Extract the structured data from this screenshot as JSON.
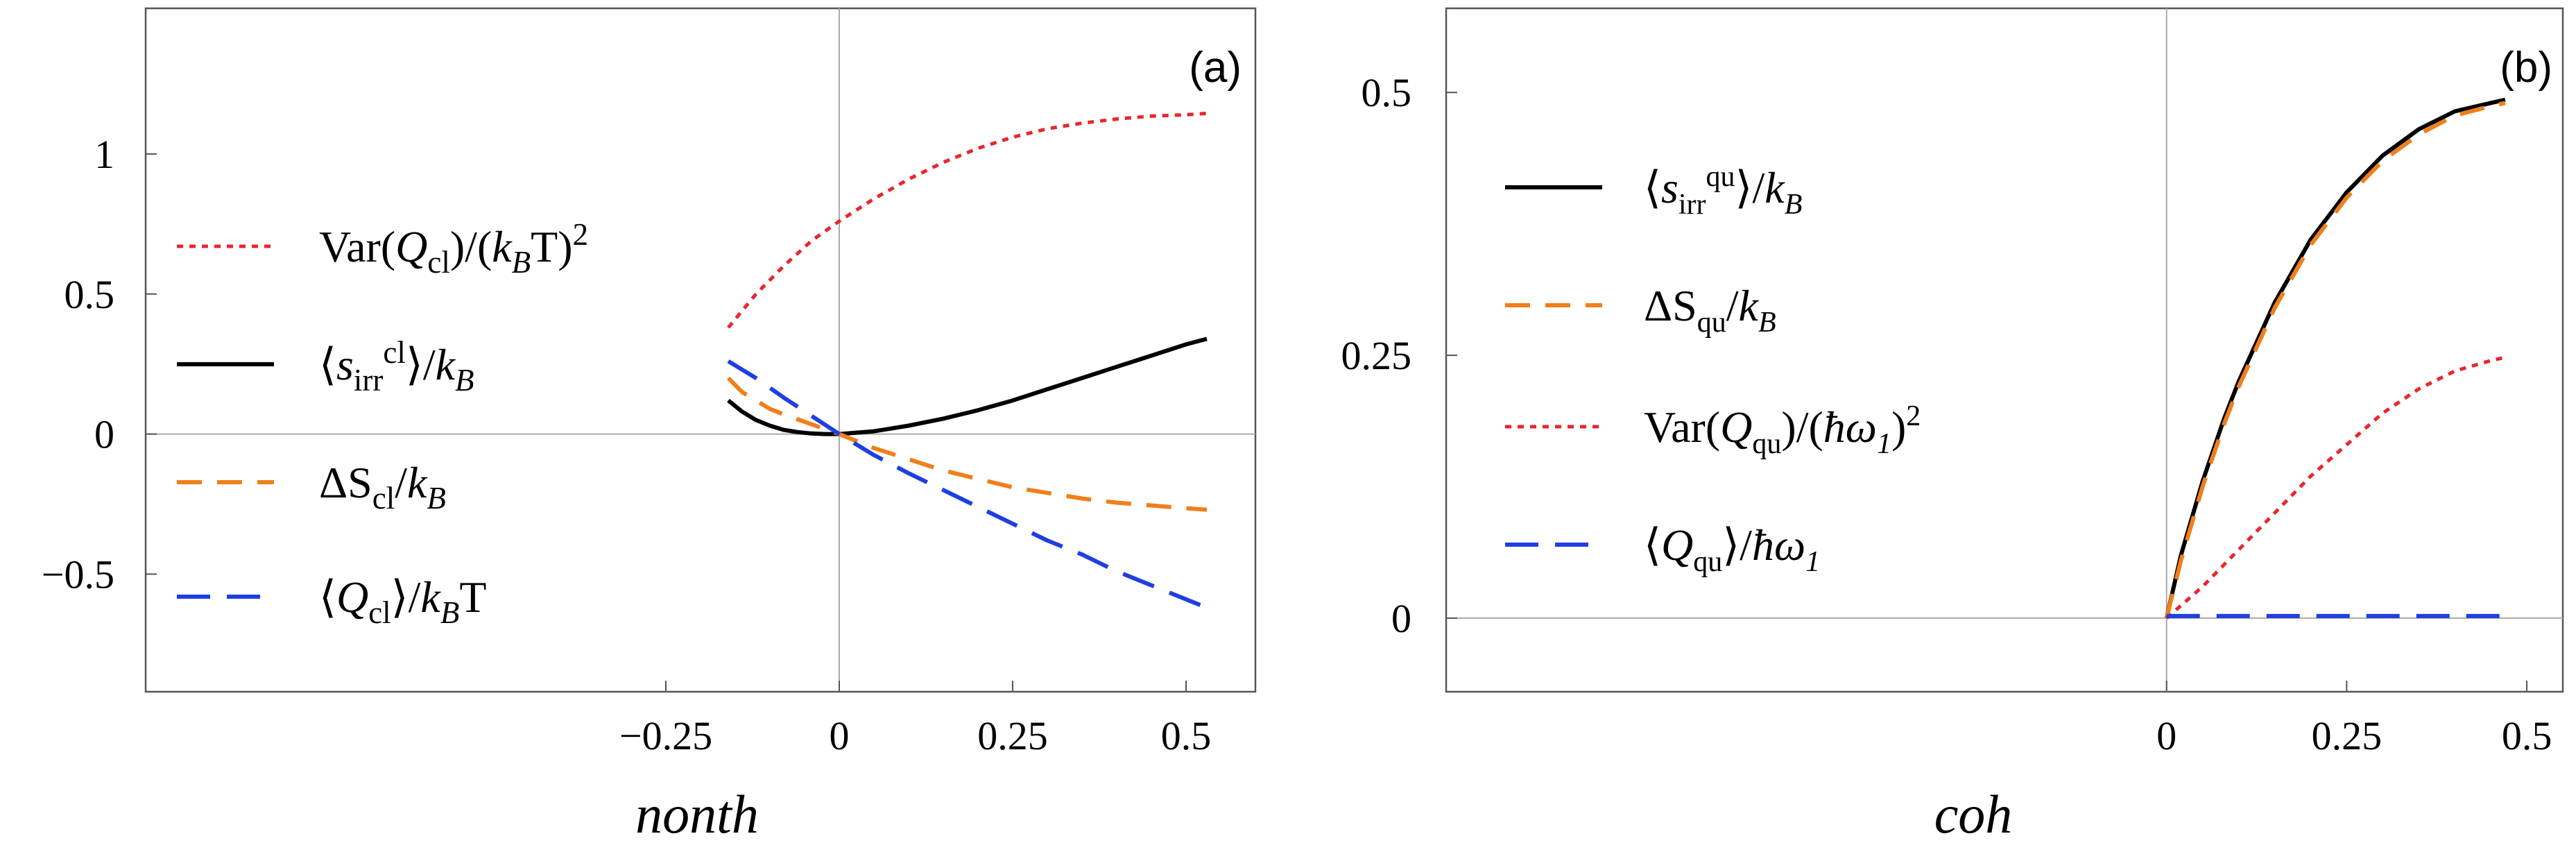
{
  "chart_data": [
    {
      "type": "line",
      "panel_label": "(a)",
      "xlabel": "nonth",
      "ylabel": "",
      "xlim": [
        -1.0,
        0.6
      ],
      "ylim": [
        -0.92,
        1.52
      ],
      "grid": false,
      "legend_position": "left",
      "x_ticks": [
        {
          "value": -0.25,
          "label": "−0.25"
        },
        {
          "value": 0,
          "label": "0"
        },
        {
          "value": 0.25,
          "label": "0.25"
        },
        {
          "value": 0.5,
          "label": "0.5"
        }
      ],
      "y_ticks": [
        {
          "value": -0.5,
          "label": "−0.5"
        },
        {
          "value": 0,
          "label": "0"
        },
        {
          "value": 0.5,
          "label": "0.5"
        },
        {
          "value": 1,
          "label": "1"
        }
      ],
      "series": [
        {
          "name": "Var(Q_cl)/(k_B T)^2",
          "color": "#e8262d",
          "dash": "dotted",
          "legend": {
            "pre": "Var(",
            "sym": "Q",
            "sub": "cl",
            "mid": ")/(",
            "sym2": "k",
            "sub2": "B",
            "post": "T)",
            "sup": "2"
          },
          "x": [
            -0.16,
            -0.12,
            -0.08,
            -0.04,
            0.0,
            0.05,
            0.1,
            0.15,
            0.2,
            0.25,
            0.3,
            0.35,
            0.4,
            0.45,
            0.5,
            0.53
          ],
          "y": [
            0.38,
            0.5,
            0.6,
            0.69,
            0.76,
            0.84,
            0.91,
            0.97,
            1.02,
            1.06,
            1.09,
            1.11,
            1.125,
            1.135,
            1.14,
            1.145
          ]
        },
        {
          "name": "<s_irr^cl>/k_B",
          "color": "#000000",
          "dash": "solid",
          "legend": {
            "pre": "⟨",
            "sym": "s",
            "sub": "irr",
            "sup": "cl",
            "mid": "⟩/",
            "sym2": "k",
            "sub2": "B",
            "post": ""
          },
          "x": [
            -0.16,
            -0.14,
            -0.12,
            -0.1,
            -0.08,
            -0.06,
            -0.04,
            -0.02,
            0.0,
            0.05,
            0.1,
            0.15,
            0.2,
            0.25,
            0.3,
            0.35,
            0.4,
            0.45,
            0.5,
            0.53
          ],
          "y": [
            0.12,
            0.08,
            0.05,
            0.03,
            0.015,
            0.007,
            0.002,
            0.0,
            0.0,
            0.01,
            0.03,
            0.055,
            0.085,
            0.12,
            0.16,
            0.2,
            0.24,
            0.28,
            0.32,
            0.34
          ]
        },
        {
          "name": "ΔS_cl/k_B",
          "color": "#f07f1a",
          "dash": "dashed",
          "legend": {
            "pre": "ΔS",
            "sym": "",
            "sub": "cl",
            "mid": "/",
            "sym2": "k",
            "sub2": "B",
            "post": ""
          },
          "x": [
            -0.16,
            -0.14,
            -0.12,
            -0.1,
            -0.08,
            -0.04,
            0.0,
            0.05,
            0.1,
            0.15,
            0.2,
            0.25,
            0.3,
            0.35,
            0.4,
            0.45,
            0.5,
            0.53
          ],
          "y": [
            0.2,
            0.15,
            0.12,
            0.09,
            0.07,
            0.035,
            0.0,
            -0.05,
            -0.09,
            -0.13,
            -0.16,
            -0.19,
            -0.21,
            -0.23,
            -0.245,
            -0.255,
            -0.265,
            -0.27
          ]
        },
        {
          "name": "<Q_cl>/k_B T",
          "color": "#1f3fe0",
          "dash": "longdash",
          "legend": {
            "pre": "⟨",
            "sym": "Q",
            "sub": "cl",
            "mid": "⟩/",
            "sym2": "k",
            "sub2": "B",
            "post": "T"
          },
          "x": [
            -0.16,
            -0.12,
            -0.08,
            -0.04,
            0.0,
            0.05,
            0.1,
            0.15,
            0.2,
            0.25,
            0.3,
            0.35,
            0.4,
            0.45,
            0.5,
            0.53
          ],
          "y": [
            0.26,
            0.2,
            0.13,
            0.065,
            0.0,
            -0.075,
            -0.14,
            -0.2,
            -0.26,
            -0.32,
            -0.38,
            -0.43,
            -0.49,
            -0.54,
            -0.59,
            -0.62
          ]
        }
      ]
    },
    {
      "type": "line",
      "panel_label": "(b)",
      "xlabel": "coh",
      "ylabel": "",
      "xlim": [
        -1.0,
        0.55
      ],
      "ylim": [
        -0.07,
        0.58
      ],
      "grid": false,
      "legend_position": "left",
      "x_ticks": [
        {
          "value": 0,
          "label": "0"
        },
        {
          "value": 0.25,
          "label": "0.25"
        },
        {
          "value": 0.5,
          "label": "0.5"
        }
      ],
      "y_ticks": [
        {
          "value": 0,
          "label": "0"
        },
        {
          "value": 0.25,
          "label": "0.25"
        },
        {
          "value": 0.5,
          "label": "0.5"
        }
      ],
      "series": [
        {
          "name": "<s_irr^qu>/k_B",
          "color": "#000000",
          "dash": "solid",
          "legend": {
            "pre": "⟨",
            "sym": "s",
            "sub": "irr",
            "sup": "qu",
            "mid": "⟩/",
            "sym2": "k",
            "sub2": "B",
            "post": ""
          },
          "x": [
            0.0,
            0.02,
            0.05,
            0.08,
            0.1,
            0.15,
            0.2,
            0.25,
            0.3,
            0.35,
            0.4,
            0.45,
            0.47
          ],
          "y": [
            0.0,
            0.06,
            0.13,
            0.19,
            0.225,
            0.3,
            0.36,
            0.405,
            0.44,
            0.465,
            0.482,
            0.49,
            0.493
          ]
        },
        {
          "name": "ΔS_qu/k_B",
          "color": "#f07f1a",
          "dash": "dashed",
          "legend": {
            "pre": "ΔS",
            "sym": "",
            "sub": "qu",
            "mid": "/",
            "sym2": "k",
            "sub2": "B",
            "post": ""
          },
          "x": [
            0.0,
            0.02,
            0.05,
            0.08,
            0.1,
            0.15,
            0.2,
            0.25,
            0.3,
            0.35,
            0.4,
            0.45,
            0.47
          ],
          "y": [
            0.0,
            0.055,
            0.125,
            0.185,
            0.22,
            0.295,
            0.355,
            0.4,
            0.435,
            0.46,
            0.478,
            0.487,
            0.49
          ]
        },
        {
          "name": "Var(Q_qu)/(ħω_1)^2",
          "color": "#e8262d",
          "dash": "dotted",
          "legend": {
            "pre": "Var(",
            "sym": "Q",
            "sub": "qu",
            "mid": ")/(",
            "sym2": "ħω",
            "sub2": "1",
            "post": ")",
            "sup": "2"
          },
          "x": [
            0.0,
            0.05,
            0.1,
            0.15,
            0.2,
            0.25,
            0.3,
            0.35,
            0.4,
            0.45,
            0.47
          ],
          "y": [
            0.0,
            0.03,
            0.065,
            0.1,
            0.135,
            0.165,
            0.195,
            0.218,
            0.235,
            0.245,
            0.248
          ]
        },
        {
          "name": "<Q_qu>/ħω_1",
          "color": "#1f3fe0",
          "dash": "longdash",
          "legend": {
            "pre": "⟨",
            "sym": "Q",
            "sub": "qu",
            "mid": "⟩/",
            "sym2": "ħω",
            "sub2": "1",
            "post": ""
          },
          "x": [
            0.0,
            0.1,
            0.2,
            0.3,
            0.4,
            0.47
          ],
          "y": [
            0.002,
            0.002,
            0.002,
            0.002,
            0.002,
            0.002
          ]
        }
      ]
    }
  ]
}
